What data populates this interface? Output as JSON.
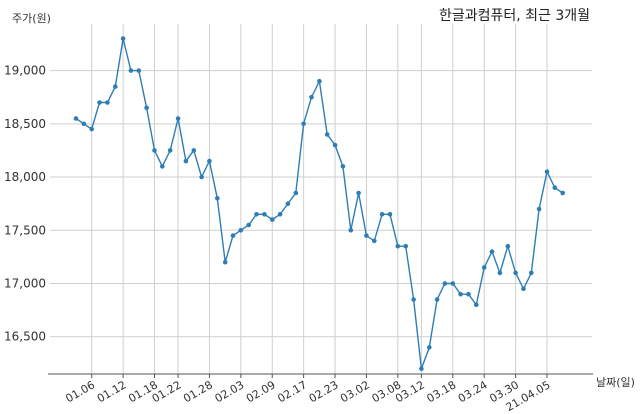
{
  "chart_data": {
    "type": "line",
    "title": "한글과컴퓨터, 최근 3개월",
    "ylabel": "주가(원)",
    "xlabel": "날짜(일)",
    "ylim": [
      16150,
      19400
    ],
    "yticks": [
      16500,
      17000,
      17500,
      18000,
      18500,
      19000
    ],
    "ytick_labels": [
      "16,500",
      "17,000",
      "17,500",
      "18,000",
      "18,500",
      "19,000"
    ],
    "xtick_labels": [
      "01.06",
      "01.12",
      "01.18",
      "01.22",
      "01.28",
      "02.03",
      "02.09",
      "02.17",
      "02.23",
      "03.02",
      "03.08",
      "03.12",
      "03.18",
      "03.24",
      "03.30",
      "21.04.05"
    ],
    "xtick_index": [
      2,
      6,
      10,
      13,
      17,
      21,
      25,
      29,
      33,
      37,
      41,
      44,
      48,
      52,
      56,
      60
    ],
    "grid": true,
    "series": [
      {
        "color": "#2f7db5",
        "values": [
          18550,
          18500,
          18450,
          18700,
          18700,
          18850,
          19300,
          19000,
          19000,
          18650,
          18250,
          18100,
          18250,
          18550,
          18150,
          18250,
          18000,
          18150,
          17800,
          17200,
          17450,
          17500,
          17550,
          17650,
          17650,
          17600,
          17650,
          17750,
          17850,
          18500,
          18750,
          18900,
          18400,
          18300,
          18100,
          17500,
          17850,
          17450,
          17400,
          17650,
          17650,
          17350,
          17350,
          16850,
          16200,
          16400,
          16850,
          17000,
          17000,
          16900,
          16900,
          16800,
          17150,
          17300,
          17100,
          17350,
          17100,
          16950,
          17100,
          17700,
          18050,
          17900,
          17850
        ]
      }
    ]
  }
}
